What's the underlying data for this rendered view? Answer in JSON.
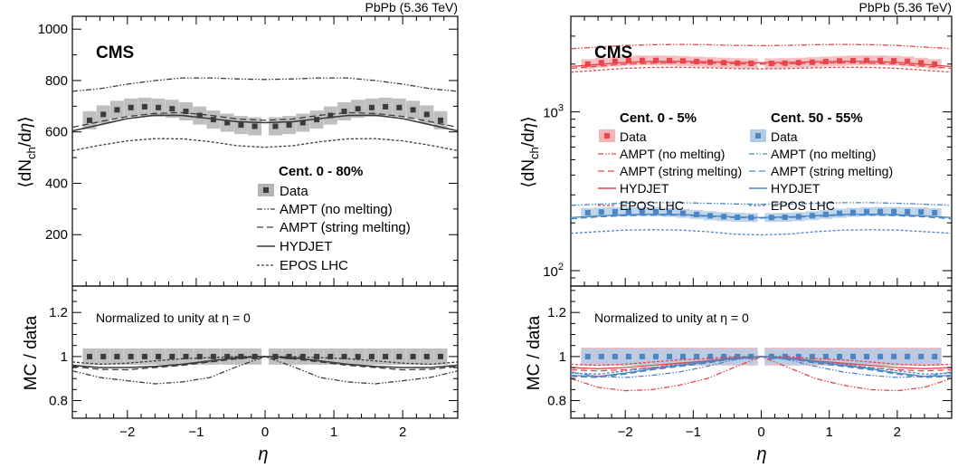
{
  "chart_data": [
    {
      "type": "line",
      "panel": "left",
      "header": "PbPb (5.36 TeV)",
      "experiment": "CMS",
      "ylabel_top": "⟨dN_ch/dη⟩",
      "ylabel_bottom": "MC / data",
      "xlabel": "η",
      "xlim": [
        -2.8,
        2.8
      ],
      "ylim_top": [
        0,
        1050
      ],
      "ylim_bottom": [
        0.72,
        1.32
      ],
      "y_scale_top": "linear",
      "xticks": [
        "−2",
        "−1",
        "0",
        "1",
        "2"
      ],
      "yticks_top": [
        "200",
        "400",
        "600",
        "800",
        "1000"
      ],
      "yticks_bottom": [
        "0.8",
        "1",
        "1.2"
      ],
      "ratio_note": "Normalized to unity at η = 0",
      "legend_title": "Cent. 0 - 80%",
      "legend": [
        "Data",
        "AMPT (no melting)",
        "AMPT (string melting)",
        "HYDJET",
        "EPOS LHC"
      ],
      "colors": {
        "data": "#3a3a3a",
        "box": "#b4b4b4",
        "model": "#3c3c3c"
      },
      "data_points": {
        "x": [
          -2.55,
          -2.35,
          -2.15,
          -1.95,
          -1.75,
          -1.55,
          -1.35,
          -1.15,
          -0.95,
          -0.75,
          -0.55,
          -0.35,
          -0.15,
          0.15,
          0.35,
          0.55,
          0.75,
          0.95,
          1.15,
          1.35,
          1.55,
          1.75,
          1.95,
          2.15,
          2.35,
          2.55
        ],
        "y": [
          645,
          668,
          686,
          695,
          698,
          695,
          690,
          680,
          664,
          648,
          636,
          627,
          622,
          622,
          627,
          636,
          648,
          664,
          680,
          690,
          695,
          698,
          695,
          686,
          668,
          645
        ],
        "ratio": [
          1,
          1,
          1,
          1,
          1,
          1,
          1,
          1,
          1,
          1,
          1,
          1,
          1,
          1,
          1,
          1,
          1,
          1,
          1,
          1,
          1,
          1,
          1,
          1,
          1,
          1
        ]
      },
      "model_curves": {
        "x": [
          -2.8,
          -2.4,
          -2.0,
          -1.6,
          -1.2,
          -0.8,
          -0.4,
          0.0,
          0.4,
          0.8,
          1.2,
          1.6,
          2.0,
          2.4,
          2.8
        ],
        "series": [
          {
            "name": "AMPT (no melting)",
            "y": [
              758,
              768,
              786,
              800,
              810,
              810,
              806,
              804,
              806,
              810,
              810,
              800,
              786,
              768,
              758
            ],
            "ratio": [
              0.935,
              0.905,
              0.89,
              0.876,
              0.885,
              0.905,
              0.955,
              1.0,
              0.955,
              0.905,
              0.885,
              0.876,
              0.89,
              0.905,
              0.935
            ]
          },
          {
            "name": "AMPT (string melting)",
            "y": [
              618,
              640,
              660,
              672,
              675,
              665,
              650,
              645,
              650,
              665,
              675,
              672,
              660,
              640,
              618
            ],
            "ratio": [
              0.955,
              0.942,
              0.94,
              0.95,
              0.96,
              0.975,
              0.99,
              1.0,
              0.99,
              0.975,
              0.96,
              0.95,
              0.94,
              0.942,
              0.955
            ]
          },
          {
            "name": "HYDJET",
            "y": [
              604,
              628,
              652,
              665,
              664,
              652,
              640,
              636,
              640,
              652,
              664,
              665,
              652,
              628,
              604
            ],
            "ratio": [
              0.96,
              0.95,
              0.95,
              0.955,
              0.965,
              0.98,
              0.995,
              1.0,
              0.995,
              0.98,
              0.965,
              0.955,
              0.95,
              0.95,
              0.96
            ]
          },
          {
            "name": "EPOS LHC",
            "y": [
              527,
              548,
              565,
              574,
              573,
              562,
              546,
              540,
              546,
              562,
              573,
              574,
              565,
              548,
              527
            ],
            "ratio": [
              0.975,
              0.965,
              0.97,
              0.98,
              0.99,
              0.995,
              1.0,
              1.0,
              1.0,
              0.995,
              0.99,
              0.98,
              0.97,
              0.965,
              0.975
            ]
          }
        ]
      }
    },
    {
      "type": "line",
      "panel": "right",
      "header": "PbPb (5.36 TeV)",
      "experiment": "CMS",
      "ylabel_top": "⟨dN_ch/dη⟩",
      "ylabel_bottom": "MC / data",
      "xlabel": "η",
      "xlim": [
        -2.8,
        2.8
      ],
      "ylim_top": [
        80,
        4000
      ],
      "y_scale_top": "log",
      "ylim_bottom": [
        0.72,
        1.32
      ],
      "xticks": [
        "−2",
        "−1",
        "0",
        "1",
        "2"
      ],
      "yticks_top": [
        "10",
        "10"
      ],
      "yticks_top_exponent": [
        "2",
        "3"
      ],
      "yticks_bottom": [
        "0.8",
        "1",
        "1.2"
      ],
      "ratio_note": "Normalized to unity at η = 0",
      "legend_title_1": "Cent. 0 - 5%",
      "legend_title_2": "Cent. 50 - 55%",
      "legend": [
        "Data",
        "AMPT (no melting)",
        "AMPT (string melting)",
        "HYDJET",
        "EPOS LHC"
      ],
      "colors": {
        "red": "#e8444a",
        "red_box": "#f5b4b6",
        "blue": "#4a86c4",
        "blue_box": "#b4cbe6"
      },
      "central": {
        "data_x": [
          -2.55,
          -2.35,
          -2.15,
          -1.95,
          -1.75,
          -1.55,
          -1.35,
          -1.15,
          -0.95,
          -0.75,
          -0.55,
          -0.35,
          -0.15,
          0.15,
          0.35,
          0.55,
          0.75,
          0.95,
          1.15,
          1.35,
          1.55,
          1.75,
          1.95,
          2.15,
          2.35,
          2.55
        ],
        "data_y": [
          2000,
          2040,
          2080,
          2100,
          2110,
          2110,
          2105,
          2095,
          2075,
          2055,
          2040,
          2030,
          2020,
          2020,
          2030,
          2040,
          2055,
          2075,
          2095,
          2105,
          2110,
          2110,
          2100,
          2080,
          2040,
          2000
        ],
        "model_x": [
          -2.8,
          -2.4,
          -2.0,
          -1.6,
          -1.2,
          -0.8,
          -0.4,
          0.0,
          0.4,
          0.8,
          1.2,
          1.6,
          2.0,
          2.4,
          2.8
        ],
        "series": [
          {
            "name": "AMPT (no melting)",
            "y": [
              2500,
              2560,
              2620,
              2650,
              2660,
              2650,
              2625,
              2615,
              2625,
              2650,
              2660,
              2650,
              2620,
              2560,
              2500
            ],
            "ratio": [
              0.9,
              0.86,
              0.845,
              0.85,
              0.87,
              0.9,
              0.95,
              1.0,
              0.95,
              0.9,
              0.87,
              0.85,
              0.845,
              0.86,
              0.9
            ]
          },
          {
            "name": "AMPT (string melting)",
            "y": [
              1880,
              1940,
              2000,
              2030,
              2040,
              2030,
              2010,
              2000,
              2010,
              2030,
              2040,
              2030,
              2000,
              1940,
              1880
            ],
            "ratio": [
              0.94,
              0.935,
              0.94,
              0.95,
              0.96,
              0.975,
              0.99,
              1.0,
              0.99,
              0.975,
              0.96,
              0.95,
              0.94,
              0.935,
              0.94
            ]
          },
          {
            "name": "HYDJET",
            "y": [
              1930,
              1990,
              2050,
              2080,
              2085,
              2070,
              2050,
              2040,
              2050,
              2070,
              2085,
              2080,
              2050,
              1990,
              1930
            ],
            "ratio": [
              0.95,
              0.945,
              0.95,
              0.96,
              0.97,
              0.98,
              0.995,
              1.0,
              0.995,
              0.98,
              0.97,
              0.96,
              0.95,
              0.945,
              0.95
            ]
          },
          {
            "name": "EPOS LHC",
            "y": [
              1780,
              1830,
              1880,
              1905,
              1910,
              1895,
              1875,
              1865,
              1875,
              1895,
              1910,
              1905,
              1880,
              1830,
              1780
            ],
            "ratio": [
              0.965,
              0.96,
              0.965,
              0.975,
              0.985,
              0.99,
              1.0,
              1.0,
              1.0,
              0.99,
              0.985,
              0.975,
              0.965,
              0.96,
              0.965
            ]
          }
        ]
      },
      "peripheral": {
        "data_x": [
          -2.55,
          -2.35,
          -2.15,
          -1.95,
          -1.75,
          -1.55,
          -1.35,
          -1.15,
          -0.95,
          -0.75,
          -0.55,
          -0.35,
          -0.15,
          0.15,
          0.35,
          0.55,
          0.75,
          0.95,
          1.15,
          1.35,
          1.55,
          1.75,
          1.95,
          2.15,
          2.35,
          2.55
        ],
        "data_y": [
          232,
          234,
          235,
          236,
          236,
          235,
          233,
          230,
          226,
          222,
          219,
          217,
          216,
          216,
          217,
          219,
          222,
          226,
          230,
          233,
          235,
          236,
          236,
          235,
          234,
          232
        ],
        "model_x": [
          -2.8,
          -2.4,
          -2.0,
          -1.6,
          -1.2,
          -0.8,
          -0.4,
          0.0,
          0.4,
          0.8,
          1.2,
          1.6,
          2.0,
          2.4,
          2.8
        ],
        "series": [
          {
            "name": "AMPT (no melting)",
            "y": [
              258,
              262,
              266,
              268,
              268,
              266,
              263,
              262,
              263,
              266,
              268,
              268,
              266,
              262,
              258
            ],
            "ratio": [
              0.93,
              0.91,
              0.905,
              0.915,
              0.93,
              0.955,
              0.985,
              1.0,
              0.985,
              0.955,
              0.93,
              0.915,
              0.905,
              0.91,
              0.93
            ]
          },
          {
            "name": "AMPT (string melting)",
            "y": [
              212,
              218,
              222,
              224,
              224,
              220,
              216,
              214,
              216,
              220,
              224,
              224,
              222,
              218,
              212
            ],
            "ratio": [
              0.91,
              0.905,
              0.92,
              0.94,
              0.955,
              0.97,
              0.99,
              1.0,
              0.99,
              0.97,
              0.955,
              0.94,
              0.92,
              0.905,
              0.91
            ]
          },
          {
            "name": "HYDJET",
            "y": [
              216,
              221,
              225,
              227,
              226,
              222,
              218,
              216,
              218,
              222,
              226,
              227,
              225,
              221,
              216
            ],
            "ratio": [
              0.915,
              0.91,
              0.925,
              0.945,
              0.96,
              0.975,
              0.99,
              1.0,
              0.99,
              0.975,
              0.96,
              0.945,
              0.925,
              0.91,
              0.915
            ]
          },
          {
            "name": "EPOS LHC",
            "y": [
              172,
              176,
              180,
              181,
              180,
              176,
              170,
              168,
              170,
              176,
              180,
              181,
              180,
              176,
              172
            ],
            "ratio": [
              0.925,
              0.92,
              0.935,
              0.95,
              0.965,
              0.98,
              0.995,
              1.0,
              0.995,
              0.98,
              0.965,
              0.95,
              0.935,
              0.92,
              0.925
            ]
          }
        ]
      }
    }
  ]
}
